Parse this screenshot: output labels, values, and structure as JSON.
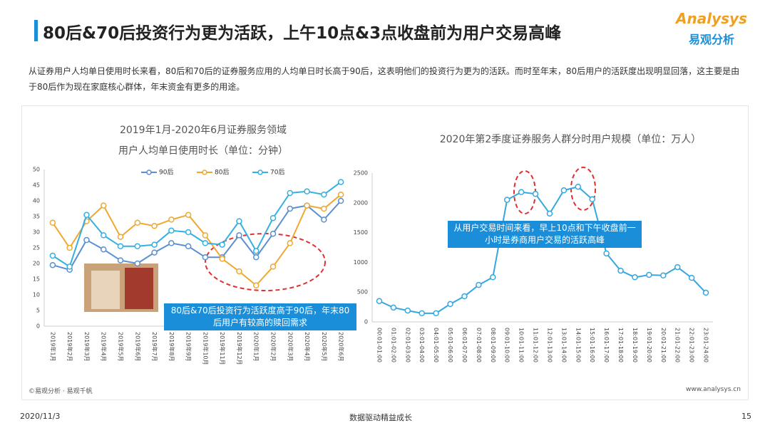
{
  "header": {
    "title": "80后&70后投资行为更为活跃，上午10点&3点收盘前为用户交易高峰",
    "logo_en": "Analysys",
    "logo_cn": "易观分析"
  },
  "body": "从证券用户人均单日使用时长来看，80后和70后的证券服务应用的人均单日时长高于90后，这表明他们的投资行为更为的活跃。而时至年末，80后用户的活跃度出现明显回落，这主要是由于80后作为现在家庭核心群体，年末资金有更多的用途。",
  "chart_data": [
    {
      "type": "line",
      "title": "2019年1月-2020年6月证券服务领域",
      "subtitle": "用户人均单日使用时长（单位：分钟）",
      "categories": [
        "2019年1月",
        "2019年2月",
        "2019年3月",
        "2019年4月",
        "2019年5月",
        "2019年6月",
        "2019年7月",
        "2019年8月",
        "2019年9月",
        "2019年10月",
        "2019年11月",
        "2019年12月",
        "2020年1月",
        "2020年2月",
        "2020年3月",
        "2020年4月",
        "2020年5月",
        "2020年6月"
      ],
      "series": [
        {
          "name": "90后",
          "color": "#5a8fd0",
          "values": [
            19.5,
            18,
            27.5,
            24.5,
            21,
            20,
            23.5,
            26.5,
            25.5,
            22,
            22,
            29,
            22,
            29.5,
            37.5,
            38.5,
            34,
            40
          ]
        },
        {
          "name": "80后",
          "color": "#f0a830",
          "values": [
            33,
            25,
            33.5,
            38.5,
            28.5,
            33,
            32,
            34,
            35.5,
            29,
            21.5,
            17.5,
            13,
            19,
            26.5,
            38.5,
            37.5,
            42
          ]
        },
        {
          "name": "70后",
          "color": "#35b0e0",
          "values": [
            22.5,
            19,
            35.5,
            29,
            25.5,
            25.5,
            26,
            30.5,
            30,
            26.5,
            26,
            33.5,
            24,
            34.5,
            42.5,
            43,
            42,
            46
          ]
        }
      ],
      "ylim": [
        0,
        50
      ],
      "yticks": [
        0,
        5,
        10,
        15,
        20,
        25,
        30,
        35,
        40,
        45,
        50
      ],
      "grid": false,
      "legend": "top",
      "annotation": "80后&70后投资行为活跃度高于90后，年末80后用户有较高的赎回需求"
    },
    {
      "type": "line",
      "title": "2020年第2季度证券服务人群分时用户规模（单位：万人）",
      "categories": [
        "00:01-01:00",
        "01:01-02:00",
        "02:01-03:00",
        "03:01-04:00",
        "04:01-05:00",
        "05:01-06:00",
        "06:01-07:00",
        "07:01-08:00",
        "08:01-09:00",
        "09:01-10:00",
        "10:01-11:00",
        "11:01-12:00",
        "12:01-13:00",
        "13:01-14:00",
        "14:01-15:00",
        "15:01-16:00",
        "16:01-17:00",
        "17:01-18:00",
        "18:01-19:00",
        "19:01-20:00",
        "20:01-21:00",
        "21:01-22:00",
        "22:01-23:00",
        "23:01-24:00"
      ],
      "values": [
        350,
        240,
        190,
        145,
        145,
        300,
        430,
        620,
        750,
        2050,
        2180,
        2150,
        1820,
        2210,
        2270,
        2060,
        1150,
        860,
        750,
        790,
        780,
        920,
        740,
        490
      ],
      "color": "#35a7e0",
      "ylim": [
        0,
        2500
      ],
      "yticks": [
        0,
        500,
        1000,
        1500,
        2000,
        2500
      ],
      "grid": false,
      "annotation": "从用户交易时间来看，早上10点和下午收盘前一小时是券商用户交易的活跃高峰"
    }
  ],
  "footer": {
    "source": "©易观分析 · 易观千帆",
    "site": "www.analysys.cn",
    "date": "2020/11/3",
    "slogan": "数据驱动精益成长",
    "page": "15"
  }
}
